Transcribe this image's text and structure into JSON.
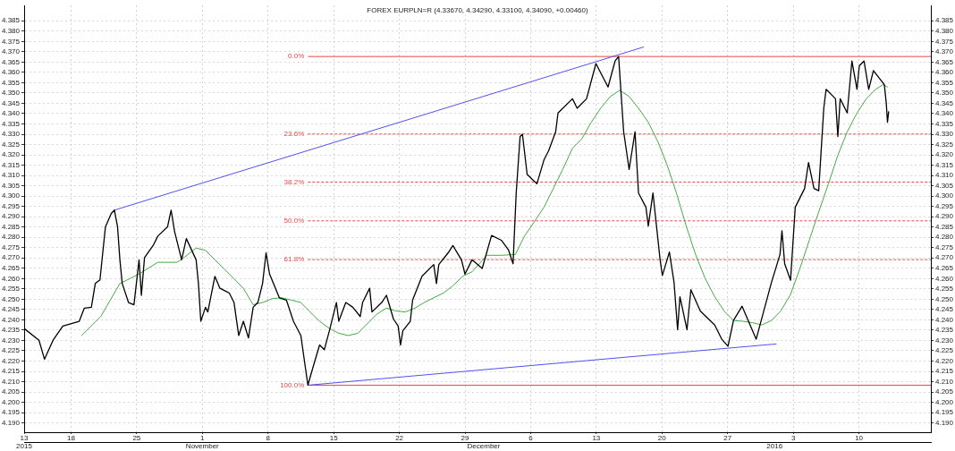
{
  "chart_data": {
    "type": "line",
    "title": "FOREX EURPLN=R (4.33670, 4.34290, 4.33100, 4.34090, +0.00460)",
    "xlim": [
      "2015-10-13",
      "2016-01-17T16:00"
    ],
    "xticks": [
      {
        "value": "2015-10-13",
        "label": "13"
      },
      {
        "value": "2015-10-18",
        "label": "18"
      },
      {
        "value": "2015-10-25",
        "label": "25"
      },
      {
        "value": "2015-11-01",
        "label": "1"
      },
      {
        "value": "2015-11-08",
        "label": "8"
      },
      {
        "value": "2015-11-15",
        "label": "15"
      },
      {
        "value": "2015-11-22",
        "label": "22"
      },
      {
        "value": "2015-11-29",
        "label": "29"
      },
      {
        "value": "2015-12-06",
        "label": "6"
      },
      {
        "value": "2015-12-13",
        "label": "13"
      },
      {
        "value": "2015-12-20",
        "label": "20"
      },
      {
        "value": "2015-12-27",
        "label": "27"
      },
      {
        "value": "2016-01-03",
        "label": "3"
      },
      {
        "value": "2016-01-10",
        "label": "10"
      }
    ],
    "x2lim": [
      "2015-10-13",
      "2016-01-17T16:00"
    ],
    "x2ticks": [
      {
        "value": "2015-10-13",
        "label": "2015"
      },
      {
        "value": "2015-11-01",
        "label": "November"
      },
      {
        "value": "2015-12-01",
        "label": "December"
      },
      {
        "value": "2016-01-01",
        "label": "2016"
      }
    ],
    "ylim": [
      4.1855,
      4.3925
    ],
    "yticks": [
      {
        "value": 4.19,
        "label": "4.190"
      },
      4.195,
      {
        "value": 4.2,
        "label": "4.200"
      },
      4.205,
      {
        "value": 4.21,
        "label": "4.210"
      },
      4.215,
      {
        "value": 4.22,
        "label": "4.220"
      },
      4.225,
      {
        "value": 4.23,
        "label": "4.230"
      },
      4.235,
      {
        "value": 4.24,
        "label": "4.240"
      },
      4.245,
      {
        "value": 4.25,
        "label": "4.250"
      },
      4.255,
      {
        "value": 4.26,
        "label": "4.260"
      },
      4.265,
      {
        "value": 4.27,
        "label": "4.270"
      },
      4.275,
      {
        "value": 4.28,
        "label": "4.280"
      },
      4.285,
      {
        "value": 4.29,
        "label": "4.290"
      },
      4.295,
      {
        "value": 4.3,
        "label": "4.300"
      },
      4.305,
      {
        "value": 4.31,
        "label": "4.310"
      },
      4.315,
      {
        "value": 4.32,
        "label": "4.320"
      },
      4.325,
      {
        "value": 4.33,
        "label": "4.330"
      },
      4.335,
      {
        "value": 4.34,
        "label": "4.340"
      },
      4.345,
      {
        "value": 4.35,
        "label": "4.350"
      },
      4.355,
      {
        "value": 4.36,
        "label": "4.360"
      },
      4.365,
      {
        "value": 4.37,
        "label": "4.370"
      },
      4.375,
      {
        "value": 4.38,
        "label": "4.380"
      },
      4.385
    ],
    "y2lim": [
      4.1855,
      4.3925
    ],
    "y2ticks": [
      {
        "value": 4.19,
        "label": "4.190"
      },
      4.195,
      {
        "value": 4.2,
        "label": "4.200"
      },
      4.205,
      {
        "value": 4.21,
        "label": "4.210"
      },
      4.215,
      {
        "value": 4.22,
        "label": "4.220"
      },
      4.225,
      {
        "value": 4.23,
        "label": "4.230"
      },
      4.235,
      {
        "value": 4.24,
        "label": "4.240"
      },
      4.245,
      {
        "value": 4.25,
        "label": "4.250"
      },
      4.255,
      {
        "value": 4.26,
        "label": "4.260"
      },
      4.265,
      {
        "value": 4.27,
        "label": "4.270"
      },
      4.275,
      {
        "value": 4.28,
        "label": "4.280"
      },
      4.285,
      {
        "value": 4.29,
        "label": "4.290"
      },
      4.295,
      {
        "value": 4.3,
        "label": "4.300"
      },
      4.305,
      {
        "value": 4.31,
        "label": "4.310"
      },
      4.315,
      {
        "value": 4.32,
        "label": "4.320"
      },
      4.325,
      {
        "value": 4.33,
        "label": "4.330"
      },
      4.335,
      {
        "value": 4.34,
        "label": "4.340"
      },
      4.345,
      {
        "value": 4.35,
        "label": "4.350"
      },
      4.355,
      {
        "value": 4.36,
        "label": "4.360"
      },
      4.365,
      {
        "value": 4.37,
        "label": "4.370"
      },
      4.375,
      {
        "value": 4.38,
        "label": "4.380"
      },
      4.385
    ],
    "grid": true,
    "legend": false,
    "marker": "none",
    "ref_lines": [
      {
        "axis": "y",
        "value": 4.3677,
        "color": "#e84848",
        "line_style": "solid"
      },
      {
        "axis": "y",
        "value": 4.3301,
        "color": "#e84848",
        "line_style": "dotted"
      },
      {
        "axis": "y",
        "value": 4.3068,
        "color": "#e84848",
        "line_style": "dotted"
      },
      {
        "axis": "y",
        "value": 4.288,
        "color": "#e84848",
        "line_style": "dotted"
      },
      {
        "axis": "y",
        "value": 4.2692,
        "color": "#e84848",
        "line_style": "dotted"
      },
      {
        "axis": "y",
        "value": 4.2083,
        "color": "#e84848",
        "line_style": "solid"
      }
    ],
    "annotations": [
      {
        "text": "0.0%",
        "x": "2015-11-12T06:00",
        "y": 4.3677
      },
      {
        "text": "23.6%",
        "x": "2015-11-12T06:00",
        "y": 4.3301
      },
      {
        "text": "38.2%",
        "x": "2015-11-12T06:00",
        "y": 4.3068
      },
      {
        "text": "50.0%",
        "x": "2015-11-12T06:00",
        "y": 4.288
      },
      {
        "text": "61.8%",
        "x": "2015-11-12T06:00",
        "y": 4.2692
      },
      {
        "text": "100.0%",
        "x": "2015-11-12T06:00",
        "y": 4.2083
      }
    ],
    "series": [
      {
        "color": "#000000",
        "x": [
          "2015-10-13T00:00",
          "2015-10-14T14:00",
          "2015-10-15T04:00",
          "2015-10-16T02:00",
          "2015-10-17T03:00",
          "2015-10-18T21:00",
          "2015-10-19T10:00",
          "2015-10-20T04:00",
          "2015-10-20T14:00",
          "2015-10-21T02:00",
          "2015-10-21T16:00",
          "2015-10-22T07:00",
          "2015-10-22T15:00",
          "2015-10-22T23:00",
          "2015-10-23T05:00",
          "2015-10-23T11:00",
          "2015-10-24T03:00",
          "2015-10-24T17:00",
          "2015-10-25T06:00",
          "2015-10-25T12:00",
          "2015-10-25T20:00",
          "2015-10-26T18:00",
          "2015-10-27T06:00",
          "2015-10-28T07:00",
          "2015-10-28T16:00",
          "2015-10-29T01:00",
          "2015-10-29T19:00",
          "2015-10-30T07:00",
          "2015-10-31T08:00",
          "2015-10-31T14:00",
          "2015-10-31T20:00",
          "2015-11-01T08:00",
          "2015-11-01T14:00",
          "2015-11-02T08:00",
          "2015-11-02T21:00",
          "2015-11-03T21:00",
          "2015-11-04T09:00",
          "2015-11-04T21:00",
          "2015-11-05T09:00",
          "2015-11-05T22:00",
          "2015-11-06T10:00",
          "2015-11-06T22:00",
          "2015-11-07T10:00",
          "2015-11-07T19:00",
          "2015-11-08T04:00",
          "2015-11-09T05:00",
          "2015-11-09T23:00",
          "2015-11-10T17:00",
          "2015-11-11T12:00",
          "2015-11-12T00:00",
          "2015-11-12T06:00",
          "2015-11-12T18:00",
          "2015-11-13T12:00",
          "2015-11-14T00:00",
          "2015-11-14T13:00",
          "2015-11-15T07:00",
          "2015-11-15T13:00",
          "2015-11-16T07:00",
          "2015-11-17T01:00",
          "2015-11-17T20:00",
          "2015-11-18T02:00",
          "2015-11-18T20:00",
          "2015-11-19T02:00",
          "2015-11-20T03:00",
          "2015-11-20T15:00",
          "2015-11-21T09:00",
          "2015-11-21T21:00",
          "2015-11-22T03:00",
          "2015-11-22T09:00",
          "2015-11-23T04:00",
          "2015-11-23T10:00",
          "2015-11-24T10:00",
          "2015-11-25T16:00",
          "2015-11-25T23:00",
          "2015-11-26T05:00",
          "2015-11-27T05:00",
          "2015-11-27T17:00",
          "2015-11-28T15:00",
          "2015-11-29T00:00",
          "2015-11-29T18:00",
          "2015-11-30T20:00",
          "2015-12-01T20:00",
          "2015-12-02T21:00",
          "2015-12-03T15:00",
          "2015-12-04T03:00",
          "2015-12-04T11:00",
          "2015-12-04T21:00",
          "2015-12-05T03:00",
          "2015-12-05T15:00",
          "2015-12-06T03:00",
          "2015-12-06T16:00",
          "2015-12-07T10:00",
          "2015-12-07T22:00",
          "2015-12-08T16:00",
          "2015-12-08T22:00",
          "2015-12-10T11:00",
          "2015-12-10T23:00",
          "2015-12-11T23:00",
          "2015-12-12T23:00",
          "2015-12-14T06:00",
          "2015-12-15T00:00",
          "2015-12-15T09:00",
          "2015-12-15T22:00",
          "2015-12-16T12:00",
          "2015-12-17T03:00",
          "2015-12-17T12:00",
          "2015-12-18T07:00",
          "2015-12-18T13:00",
          "2015-12-19T01:00",
          "2015-12-19T19:00",
          "2015-12-20T01:00",
          "2015-12-20T19:00",
          "2015-12-21T07:00",
          "2015-12-21T16:00",
          "2015-12-21T22:00",
          "2015-12-22T16:00",
          "2015-12-23T02:00",
          "2015-12-24T02:00",
          "2015-12-25T15:00",
          "2015-12-26T09:00",
          "2015-12-27T01:00",
          "2015-12-27T15:00",
          "2015-12-28T13:00",
          "2015-12-30T01:00",
          "2015-12-31T16:00",
          "2016-01-01T14:00",
          "2016-01-01T19:00",
          "2016-01-02T02:00",
          "2016-01-02T17:00",
          "2016-01-03T05:00",
          "2016-01-04T05:00",
          "2016-01-04T15:00",
          "2016-01-05T05:00",
          "2016-01-05T17:00",
          "2016-01-06T06:00",
          "2016-01-06T12:00",
          "2016-01-07T12:00",
          "2016-01-07T18:00",
          "2016-01-08T00:00",
          "2016-01-08T18:00",
          "2016-01-09T06:00",
          "2016-01-09T19:00",
          "2016-01-10T01:00",
          "2016-01-10T13:00",
          "2016-01-11T01:00",
          "2016-01-11T13:00",
          "2016-01-12T17:00",
          "2016-01-12T22:00",
          "2016-01-13T01:00",
          "2016-01-13T04:00"
        ],
        "values": [
          4.2358,
          4.2301,
          4.2209,
          4.2301,
          4.237,
          4.2393,
          4.2457,
          4.2461,
          4.2576,
          4.2594,
          4.2851,
          4.2916,
          4.2932,
          4.2851,
          4.2691,
          4.2576,
          4.2484,
          4.2473,
          4.2691,
          4.2519,
          4.2702,
          4.276,
          4.2806,
          4.2851,
          4.2932,
          4.2828,
          4.2691,
          4.2794,
          4.2691,
          4.2576,
          4.2393,
          4.2461,
          4.2438,
          4.2611,
          4.2553,
          4.253,
          4.2484,
          4.2324,
          4.2393,
          4.2312,
          4.2461,
          4.2484,
          4.2576,
          4.2725,
          4.2622,
          4.2507,
          4.2496,
          4.2393,
          4.2324,
          4.2163,
          4.2083,
          4.2163,
          4.2278,
          4.2255,
          4.2347,
          4.2484,
          4.2393,
          4.2484,
          4.2461,
          4.2416,
          4.2484,
          4.2553,
          4.2438,
          4.2484,
          4.2519,
          4.2404,
          4.237,
          4.2278,
          4.2347,
          4.2393,
          4.2496,
          4.2611,
          4.2668,
          4.2576,
          4.2668,
          4.2725,
          4.276,
          4.2691,
          4.2622,
          4.2691,
          4.2649,
          4.2809,
          4.2786,
          4.274,
          4.2672,
          4.3015,
          4.3289,
          4.33,
          4.3106,
          4.3083,
          4.306,
          4.3175,
          4.322,
          4.3312,
          4.3403,
          4.3472,
          4.3426,
          4.3472,
          4.3643,
          4.3529,
          4.3655,
          4.3677,
          4.3312,
          4.3129,
          4.3312,
          4.3015,
          4.2946,
          4.2855,
          4.3015,
          4.2695,
          4.2615,
          4.2729,
          4.258,
          4.2352,
          4.2512,
          4.2352,
          4.2546,
          4.2443,
          4.2375,
          4.2306,
          4.2272,
          4.2397,
          4.2466,
          4.2306,
          4.258,
          4.2717,
          4.2832,
          4.2672,
          4.2592,
          4.2946,
          4.3037,
          4.3163,
          4.3037,
          4.3026,
          4.3426,
          4.3518,
          4.3472,
          4.3289,
          4.3472,
          4.3403,
          4.3655,
          4.3518,
          4.3632,
          4.3655,
          4.3518,
          4.3609,
          4.354,
          4.3449,
          4.3358,
          4.3409
        ]
      },
      {
        "color": "#44aa44",
        "x": [
          "2015-10-19T03:00",
          "2015-10-21T04:00",
          "2015-10-23T05:00",
          "2015-10-25T06:00",
          "2015-10-27T06:00",
          "2015-10-29T07:00",
          "2015-10-30T01:00",
          "2015-10-31T08:00",
          "2015-11-01T08:00",
          "2015-11-02T08:00",
          "2015-11-03T09:00",
          "2015-11-04T09:00",
          "2015-11-05T09:00",
          "2015-11-06T10:00",
          "2015-11-07T10:00",
          "2015-11-08T11:00",
          "2015-11-09T11:00",
          "2015-11-10T11:00",
          "2015-11-11T12:00",
          "2015-11-12T12:00",
          "2015-11-13T12:00",
          "2015-11-14T13:00",
          "2015-11-15T13:00",
          "2015-11-16T13:00",
          "2015-11-17T14:00",
          "2015-11-18T14:00",
          "2015-11-19T14:00",
          "2015-11-20T15:00",
          "2015-11-21T15:00",
          "2015-11-22T15:00",
          "2015-11-23T16:00",
          "2015-11-24T16:00",
          "2015-11-25T16:00",
          "2015-11-26T17:00",
          "2015-11-27T17:00",
          "2015-11-28T18:00",
          "2015-11-29T18:00",
          "2015-12-01T08:00",
          "2015-12-02T21:00",
          "2015-12-04T09:00",
          "2015-12-05T09:00",
          "2015-12-06T10:00",
          "2015-12-07T10:00",
          "2015-12-08T10:00",
          "2015-12-09T10:00",
          "2015-12-10T11:00",
          "2015-12-11T11:00",
          "2015-12-12T11:00",
          "2015-12-13T11:00",
          "2015-12-14T12:00",
          "2015-12-15T12:00",
          "2015-12-16T12:00",
          "2015-12-17T12:00",
          "2015-12-18T13:00",
          "2015-12-19T13:00",
          "2015-12-20T13:00",
          "2015-12-21T13:00",
          "2015-12-22T14:00",
          "2015-12-23T14:00",
          "2015-12-24T14:00",
          "2015-12-25T15:00",
          "2015-12-26T15:00",
          "2015-12-27T15:00",
          "2015-12-28T15:00",
          "2015-12-29T16:00",
          "2015-12-30T16:00",
          "2015-12-31T16:00",
          "2016-01-01T16:00",
          "2016-01-02T17:00",
          "2016-01-03T17:00",
          "2016-01-04T17:00",
          "2016-01-05T17:00",
          "2016-01-06T18:00",
          "2016-01-07T18:00",
          "2016-01-08T18:00",
          "2016-01-09T19:00",
          "2016-01-10T19:00",
          "2016-01-11T19:00",
          "2016-01-12T13:00",
          "2016-01-13T01:00"
        ],
        "values": [
          4.2324,
          4.2416,
          4.2576,
          4.2622,
          4.2679,
          4.2679,
          4.2702,
          4.2748,
          4.2737,
          4.2691,
          4.2645,
          4.2599,
          4.2553,
          4.2473,
          4.2484,
          4.2503,
          4.2507,
          4.2496,
          4.2484,
          4.2438,
          4.2393,
          4.2358,
          4.2335,
          4.2324,
          4.2335,
          4.2381,
          4.2427,
          4.2457,
          4.2443,
          4.2438,
          4.2457,
          4.2484,
          4.2507,
          4.253,
          4.2565,
          4.2611,
          4.2633,
          4.2713,
          4.2713,
          4.2717,
          4.2809,
          4.2877,
          4.2946,
          4.3037,
          4.3129,
          4.3232,
          4.3278,
          4.3358,
          4.3426,
          4.3483,
          4.3513,
          4.3483,
          4.3426,
          4.3358,
          4.3266,
          4.3152,
          4.3015,
          4.2855,
          4.2717,
          4.2603,
          4.2512,
          4.2443,
          4.2397,
          4.2393,
          4.2386,
          4.2375,
          4.2397,
          4.2443,
          4.2523,
          4.2649,
          4.2786,
          4.2923,
          4.306,
          4.3198,
          4.3312,
          4.3403,
          4.3472,
          4.3518,
          4.354,
          4.3529
        ]
      },
      {
        "color": "#5050f0",
        "x": [
          "2015-10-22T15:00",
          "2015-12-18T01:00"
        ],
        "values": [
          4.2932,
          4.3723
        ]
      },
      {
        "color": "#5050f0",
        "x": [
          "2015-11-12T06:00",
          "2016-01-01T04:00"
        ],
        "values": [
          4.2083,
          4.2283
        ]
      }
    ]
  }
}
